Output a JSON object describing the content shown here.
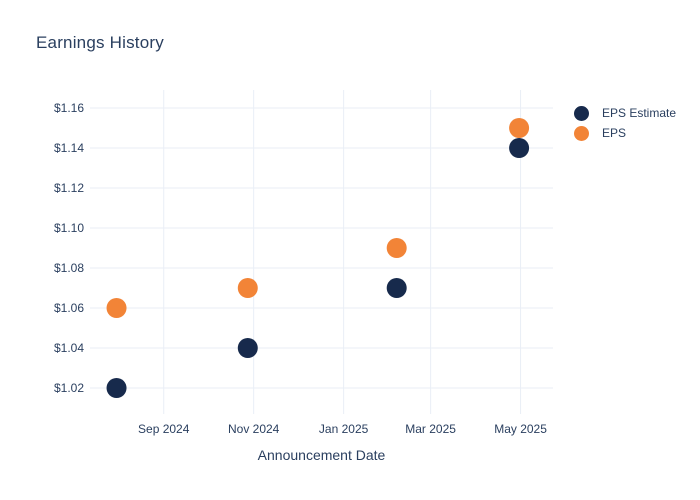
{
  "chart_data": {
    "type": "scatter",
    "title": "Earnings History",
    "xlabel": "Announcement Date",
    "ylabel": "",
    "x": [
      "2024-07-31",
      "2024-10-28",
      "2025-02-06",
      "2025-04-30"
    ],
    "series": [
      {
        "name": "EPS Estimate",
        "color": "#172A4C",
        "values": [
          1.02,
          1.04,
          1.07,
          1.14
        ]
      },
      {
        "name": "EPS",
        "color": "#F28437",
        "values": [
          1.06,
          1.07,
          1.09,
          1.15
        ]
      }
    ],
    "x_ticks": [
      {
        "date": "2024-09-01",
        "label": "Sep 2024"
      },
      {
        "date": "2024-11-01",
        "label": "Nov 2024"
      },
      {
        "date": "2025-01-01",
        "label": "Jan 2025"
      },
      {
        "date": "2025-03-01",
        "label": "Mar 2025"
      },
      {
        "date": "2025-05-01",
        "label": "May 2025"
      }
    ],
    "y_ticks": [
      1.02,
      1.04,
      1.06,
      1.08,
      1.1,
      1.12,
      1.14,
      1.16
    ],
    "y_tick_labels": [
      "$1.02",
      "$1.04",
      "$1.06",
      "$1.08",
      "$1.10",
      "$1.12",
      "$1.14",
      "$1.16"
    ],
    "ylim": [
      1.007,
      1.169
    ],
    "xlim_dates": [
      "2024-07-13",
      "2025-05-23"
    ],
    "grid": true,
    "legend_position": "right-top",
    "marker_radius": 10,
    "colors": {
      "text": "#2a3f5f",
      "grid": "#E9EEF6",
      "background": "#ffffff"
    }
  }
}
